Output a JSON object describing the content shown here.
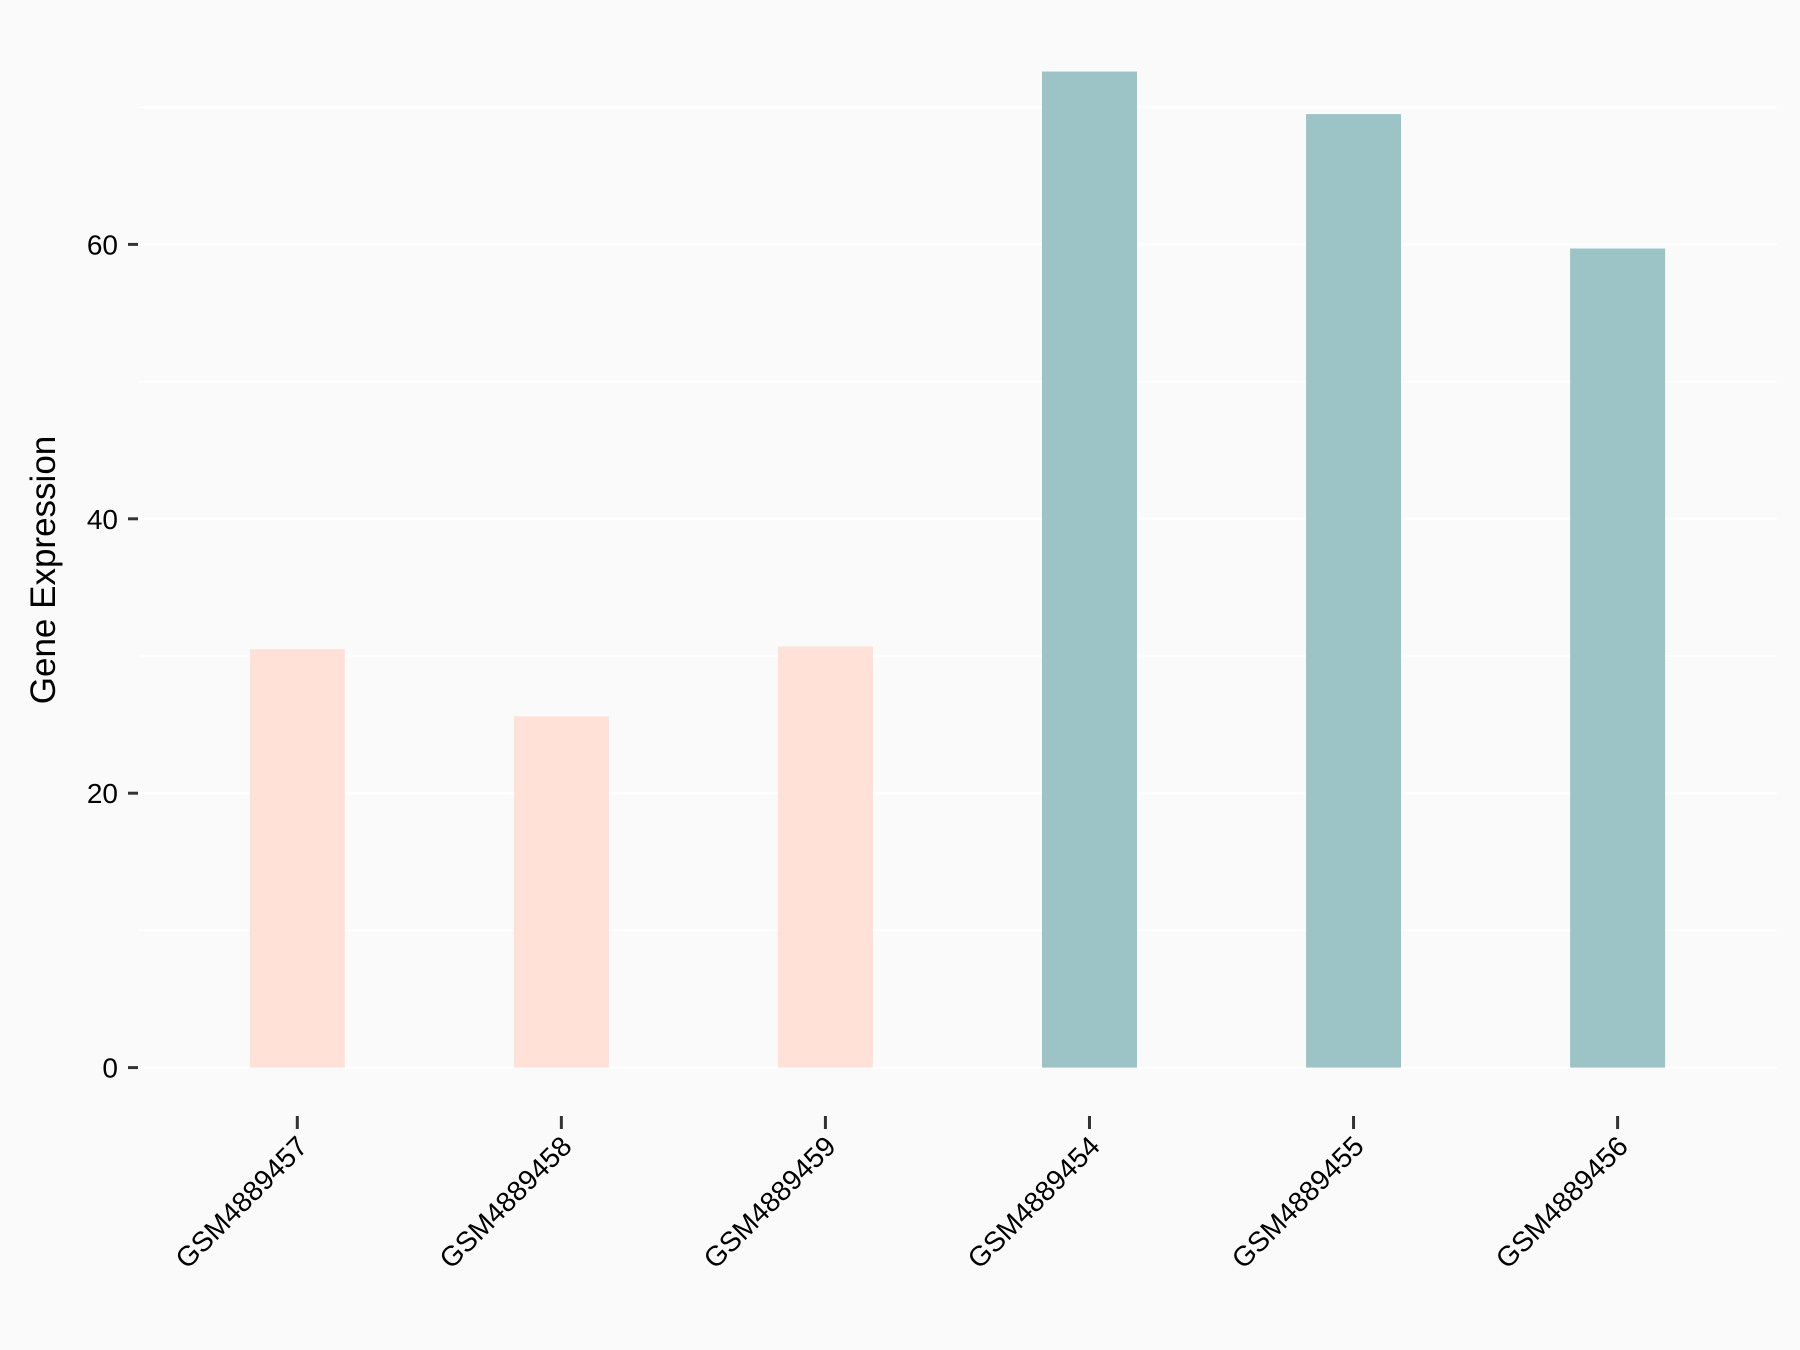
{
  "chart_data": {
    "type": "bar",
    "title": "",
    "xlabel": "",
    "ylabel": "Gene Expression",
    "categories": [
      "GSM4889457",
      "GSM4889458",
      "GSM4889459",
      "GSM4889454",
      "GSM4889455",
      "GSM4889456"
    ],
    "values": [
      30.5,
      25.6,
      30.7,
      72.6,
      69.5,
      59.7
    ],
    "bar_colors": [
      "#FFE1D7",
      "#FFE1D7",
      "#FFE1D7",
      "#9CC4C7",
      "#9CC4C7",
      "#9CC4C7"
    ],
    "yticks": [
      0,
      20,
      40,
      60
    ],
    "ytick_labels": [
      "0",
      "20",
      "40",
      "60"
    ],
    "minor_grid": [
      10,
      30,
      50,
      70
    ],
    "ylim": [
      -3.6,
      76.2
    ],
    "grid": true,
    "legend": "none",
    "background": "#FAFAFA",
    "grid_color": "#FFFFFF"
  }
}
